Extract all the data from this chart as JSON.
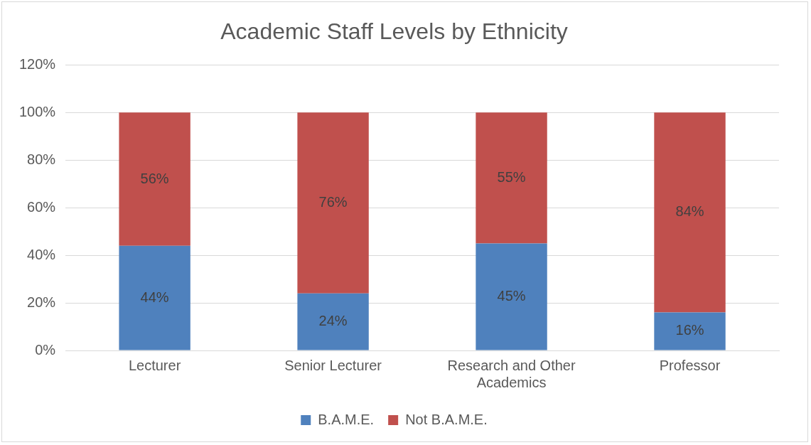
{
  "chart_data": {
    "type": "bar",
    "title": "Academic Staff Levels by Ethnicity",
    "stacked": true,
    "categories": [
      "Lecturer",
      "Senior Lecturer",
      "Research and Other Academics",
      "Professor"
    ],
    "series": [
      {
        "name": "B.A.M.E.",
        "color": "#4f81bd",
        "values": [
          44,
          24,
          45,
          16
        ],
        "value_labels": [
          "44%",
          "24%",
          "45%",
          "16%"
        ]
      },
      {
        "name": "Not B.A.M.E.",
        "color": "#c0504d",
        "values": [
          56,
          76,
          55,
          84
        ],
        "value_labels": [
          "56%",
          "76%",
          "55%",
          "84%"
        ]
      }
    ],
    "ylim": [
      0,
      120
    ],
    "yticks": [
      {
        "value": 0,
        "label": "0%"
      },
      {
        "value": 20,
        "label": "20%"
      },
      {
        "value": 40,
        "label": "40%"
      },
      {
        "value": 60,
        "label": "60%"
      },
      {
        "value": 80,
        "label": "80%"
      },
      {
        "value": 100,
        "label": "100%"
      },
      {
        "value": 120,
        "label": "120%"
      }
    ],
    "grid": "y",
    "legend": "bottom"
  }
}
